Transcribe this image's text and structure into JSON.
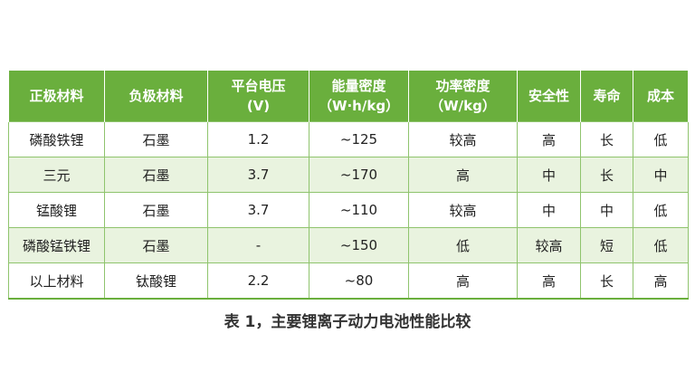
{
  "table": {
    "headers": [
      [
        "正极材料"
      ],
      [
        "负极材料"
      ],
      [
        "平台电压",
        "(V)"
      ],
      [
        "能量密度",
        "（W·h/kg）"
      ],
      [
        "功率密度",
        "（W/kg）"
      ],
      [
        "安全性"
      ],
      [
        "寿命"
      ],
      [
        "成本"
      ]
    ],
    "rows": [
      [
        "磷酸铁锂",
        "石墨",
        "1.2",
        "~125",
        "较高",
        "高",
        "长",
        "低"
      ],
      [
        "三元",
        "石墨",
        "3.7",
        "~170",
        "高",
        "中",
        "长",
        "中"
      ],
      [
        "锰酸锂",
        "石墨",
        "3.7",
        "~110",
        "较高",
        "中",
        "中",
        "低"
      ],
      [
        "磷酸锰铁锂",
        "石墨",
        "-",
        "~150",
        "低",
        "较高",
        "短",
        "低"
      ],
      [
        "以上材料",
        "钛酸锂",
        "2.2",
        "~80",
        "高",
        "高",
        "长",
        "高"
      ]
    ],
    "colors": {
      "header_bg": "#6aaf3d",
      "stripe_bg": "#e9f3df",
      "border": "#8fc46d"
    }
  },
  "caption": "表 1，主要锂离子动力电池性能比较"
}
